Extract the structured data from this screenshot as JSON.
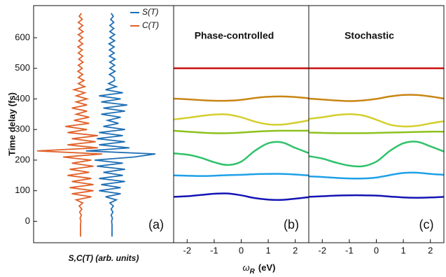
{
  "chart_data": [
    {
      "type": "trace",
      "ylabel": "Time delay (fs)",
      "xlabel": "S,C(T)  (arb. units)",
      "panel_label": "(a)",
      "ylim": [
        -70,
        705
      ],
      "yticks": [
        0,
        100,
        200,
        300,
        400,
        500,
        600
      ],
      "y": [
        -50,
        -40,
        -30,
        -20,
        -10,
        0,
        10,
        20,
        30,
        40,
        50,
        60,
        70,
        80,
        90,
        100,
        110,
        120,
        130,
        140,
        150,
        160,
        170,
        180,
        190,
        200,
        210,
        220,
        230,
        240,
        250,
        260,
        270,
        280,
        290,
        300,
        310,
        320,
        330,
        340,
        350,
        360,
        370,
        380,
        390,
        400,
        410,
        420,
        430,
        440,
        450,
        460,
        470,
        480,
        490,
        500,
        510,
        520,
        530,
        540,
        550,
        560,
        570,
        580,
        590,
        600,
        610,
        620,
        630,
        640,
        650,
        660,
        670,
        680
      ],
      "series": [
        {
          "name": "S(T)",
          "color": "#1f6fb4",
          "values": [
            0,
            0,
            0,
            0,
            0,
            -0.01,
            0.01,
            -0.02,
            0.02,
            -0.02,
            0.03,
            -0.05,
            0.1,
            -0.15,
            0.2,
            -0.3,
            0.2,
            -0.25,
            0.3,
            -0.3,
            0.25,
            -0.2,
            0.3,
            -0.35,
            0.25,
            -0.4,
            0.5,
            1.0,
            -0.6,
            0.4,
            -0.3,
            0.3,
            -0.35,
            0.25,
            -0.3,
            0.3,
            -0.2,
            0.15,
            -0.1,
            0.2,
            -0.25,
            0.3,
            -0.2,
            0.35,
            -0.25,
            0.2,
            -0.3,
            0.25,
            -0.15,
            0.1,
            -0.08,
            0.06,
            0.05,
            -0.06,
            0.07,
            -0.05,
            0.06,
            -0.05,
            0.07,
            -0.06,
            0.05,
            -0.06,
            0.05,
            -0.07,
            0.06,
            -0.05,
            0.06,
            -0.05,
            0.04,
            -0.05,
            0.04,
            -0.03,
            0.03,
            -0.02
          ]
        },
        {
          "name": "C(T)",
          "color": "#e0612a",
          "values": [
            0,
            0,
            0,
            0,
            0,
            0.01,
            -0.01,
            0.02,
            -0.02,
            0.03,
            -0.03,
            0.05,
            -0.1,
            0.25,
            -0.2,
            0.3,
            -0.25,
            0.3,
            -0.2,
            0.25,
            -0.3,
            0.2,
            -0.25,
            0.3,
            -0.2,
            0.25,
            -0.4,
            0.5,
            -1.0,
            0.4,
            -0.3,
            0.35,
            -0.2,
            0.4,
            -0.3,
            0.15,
            -0.35,
            0.2,
            -0.15,
            0.2,
            -0.1,
            0.15,
            -0.2,
            0.15,
            -0.1,
            0.15,
            -0.1,
            0.1,
            -0.15,
            0.1,
            -0.05,
            0.08,
            -0.05,
            0.05,
            -0.06,
            0.04,
            -0.05,
            0.06,
            -0.04,
            0.05,
            -0.05,
            0.04,
            -0.06,
            0.05,
            -0.04,
            0.05,
            -0.05,
            0.06,
            -0.04,
            0.05,
            -0.05,
            0.04,
            -0.03,
            0.02
          ]
        }
      ]
    },
    {
      "type": "line",
      "title": "Phase-controlled",
      "panel_label": "(b)",
      "xlim": [
        -2.5,
        2.5
      ],
      "xticks": [
        -2,
        -1,
        0,
        1,
        2
      ],
      "ylim": [
        -70,
        705
      ],
      "x": [
        -2.5,
        -2,
        -1.5,
        -1,
        -0.5,
        0,
        0.5,
        1,
        1.5,
        2,
        2.5
      ],
      "series": [
        {
          "color": "#cc1111",
          "values": [
            500,
            500,
            500,
            500,
            500,
            500,
            500,
            500,
            500,
            500,
            500
          ]
        },
        {
          "color": "#c98514",
          "values": [
            401,
            399,
            396,
            394,
            394,
            397,
            403,
            407,
            408,
            406,
            402
          ]
        },
        {
          "color": "#d3cf2c",
          "values": [
            333,
            338,
            344,
            349,
            349,
            340,
            326,
            317,
            316,
            322,
            330
          ]
        },
        {
          "color": "#8cc21f",
          "values": [
            296,
            293,
            290,
            288,
            288,
            290,
            293,
            295,
            296,
            296,
            296
          ]
        },
        {
          "color": "#2ec26a",
          "values": [
            222,
            218,
            208,
            193,
            184,
            195,
            230,
            255,
            258,
            240,
            223
          ]
        },
        {
          "color": "#1fa0e8",
          "values": [
            150,
            149,
            148,
            149,
            151,
            152,
            154,
            155,
            155,
            153,
            150
          ]
        },
        {
          "color": "#1414b4",
          "values": [
            80,
            82,
            86,
            90,
            91,
            85,
            76,
            71,
            70,
            74,
            79
          ]
        }
      ]
    },
    {
      "type": "line",
      "title": "Stochastic",
      "panel_label": "(c)",
      "xlim": [
        -2.5,
        2.5
      ],
      "xticks": [
        -2,
        -1,
        0,
        1,
        2
      ],
      "ylim": [
        -70,
        705
      ],
      "x": [
        -2.5,
        -2,
        -1.5,
        -1,
        -0.5,
        0,
        0.5,
        1,
        1.5,
        2,
        2.5
      ],
      "series": [
        {
          "color": "#cc1111",
          "values": [
            500,
            500,
            500,
            500,
            500,
            500,
            500,
            500,
            500,
            500,
            500
          ]
        },
        {
          "color": "#c98514",
          "values": [
            401,
            398,
            395,
            393,
            395,
            400,
            408,
            413,
            413,
            408,
            401
          ]
        },
        {
          "color": "#d3cf2c",
          "values": [
            335,
            340,
            347,
            350,
            346,
            332,
            316,
            310,
            312,
            320,
            327
          ]
        },
        {
          "color": "#8cc21f",
          "values": [
            290,
            289,
            288,
            288,
            288,
            289,
            290,
            291,
            292,
            293,
            293
          ]
        },
        {
          "color": "#2ec26a",
          "values": [
            213,
            205,
            192,
            182,
            180,
            195,
            230,
            255,
            260,
            245,
            228
          ]
        },
        {
          "color": "#1fa0e8",
          "values": [
            147,
            145,
            142,
            140,
            140,
            143,
            151,
            158,
            159,
            155,
            152
          ]
        },
        {
          "color": "#1414b4",
          "values": [
            80,
            82,
            84,
            85,
            85,
            84,
            81,
            78,
            77,
            78,
            80
          ]
        }
      ]
    }
  ],
  "shared_xlabel": {
    "symbol": "ω",
    "subscript": "R",
    "unit": "(eV)"
  }
}
